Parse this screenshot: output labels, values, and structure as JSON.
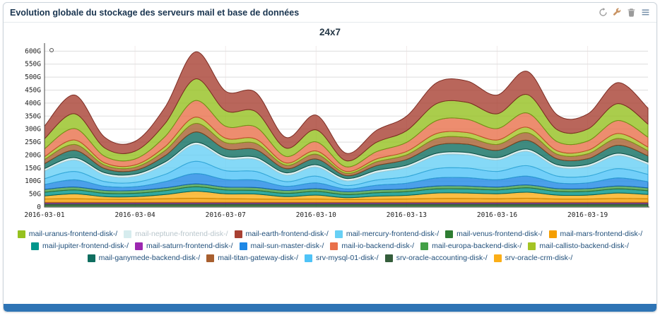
{
  "panel": {
    "title": "Evolution globale du stockage des serveurs mail et base de données",
    "toolbar_icons": [
      "refresh-icon",
      "wrench-icon",
      "trash-icon",
      "menu-icon"
    ],
    "footer_color": "#2e74b5"
  },
  "chart_data": {
    "type": "area",
    "stacked": true,
    "title": "24x7",
    "unit": "G",
    "grid": true,
    "legend_position": "bottom",
    "ylim": [
      0,
      620
    ],
    "x": [
      "2016-03-01",
      "2016-03-02",
      "2016-03-03",
      "2016-03-04",
      "2016-03-05",
      "2016-03-06",
      "2016-03-07",
      "2016-03-08",
      "2016-03-09",
      "2016-03-10",
      "2016-03-11",
      "2016-03-12",
      "2016-03-13",
      "2016-03-14",
      "2016-03-15",
      "2016-03-16",
      "2016-03-17",
      "2016-03-18",
      "2016-03-19",
      "2016-03-20",
      "2016-03-21"
    ],
    "x_ticks": [
      {
        "index": 0,
        "label": "2016-03-01"
      },
      {
        "index": 3,
        "label": "2016-03-04"
      },
      {
        "index": 6,
        "label": "2016-03-07"
      },
      {
        "index": 9,
        "label": "2016-03-10"
      },
      {
        "index": 12,
        "label": "2016-03-13"
      },
      {
        "index": 15,
        "label": "2016-03-16"
      },
      {
        "index": 18,
        "label": "2016-03-19"
      }
    ],
    "y_ticks": [
      {
        "value": 0,
        "label": "0"
      },
      {
        "value": 50,
        "label": "50G"
      },
      {
        "value": 100,
        "label": "100G"
      },
      {
        "value": 150,
        "label": "150G"
      },
      {
        "value": 200,
        "label": "200G"
      },
      {
        "value": 250,
        "label": "250G"
      },
      {
        "value": 300,
        "label": "300G"
      },
      {
        "value": 350,
        "label": "350G"
      },
      {
        "value": 400,
        "label": "400G"
      },
      {
        "value": 450,
        "label": "450G"
      },
      {
        "value": 500,
        "label": "500G"
      },
      {
        "value": 550,
        "label": "550G"
      },
      {
        "value": 600,
        "label": "600G"
      }
    ],
    "series": [
      {
        "name": "mail-venus-frontend-disk-/",
        "fill": "#2e7d32",
        "stroke": "#1b4d1e",
        "values": [
          8,
          8,
          8,
          8,
          8,
          8,
          8,
          8,
          8,
          8,
          8,
          8,
          8,
          8,
          8,
          8,
          8,
          8,
          8,
          8,
          8
        ]
      },
      {
        "name": "srv-oracle-accounting-disk-/",
        "fill": "#355e3b",
        "stroke": "#1e3a24",
        "values": [
          6,
          6,
          6,
          6,
          6,
          6,
          6,
          6,
          6,
          6,
          6,
          6,
          6,
          6,
          6,
          6,
          6,
          6,
          6,
          6,
          6
        ]
      },
      {
        "name": "mail-saturn-frontend-disk-/",
        "fill": "#9c27b0",
        "stroke": "#6a1b7a",
        "values": [
          4,
          4,
          4,
          4,
          4,
          4,
          4,
          4,
          4,
          4,
          4,
          4,
          4,
          4,
          4,
          4,
          4,
          4,
          4,
          4,
          4
        ]
      },
      {
        "name": "mail-mars-frontend-disk-/",
        "fill": "#f59e00",
        "stroke": "#b97400",
        "values": [
          13,
          14,
          12,
          12,
          14,
          16,
          14,
          13,
          12,
          13,
          11,
          12,
          13,
          15,
          15,
          14,
          16,
          13,
          13,
          15,
          14
        ]
      },
      {
        "name": "srv-oracle-crm-disk-/",
        "fill": "#fbae17",
        "stroke": "#c98200",
        "values": [
          12,
          19,
          10,
          10,
          16,
          27,
          19,
          19,
          10,
          15,
          7,
          12,
          14,
          21,
          21,
          19,
          23,
          15,
          15,
          21,
          16
        ]
      },
      {
        "name": "mail-jupiter-frontend-disk-/",
        "fill": "#00968b",
        "stroke": "#00635c",
        "values": [
          14,
          15,
          13,
          13,
          15,
          17,
          15,
          14,
          13,
          14,
          12,
          13,
          14,
          16,
          16,
          15,
          17,
          14,
          14,
          16,
          15
        ]
      },
      {
        "name": "mail-europa-backend-disk-/",
        "fill": "#43a047",
        "stroke": "#2d6e31",
        "values": [
          11,
          11,
          11,
          11,
          11,
          11,
          11,
          11,
          11,
          11,
          11,
          11,
          11,
          11,
          11,
          11,
          11,
          11,
          11,
          11,
          11
        ]
      },
      {
        "name": "mail-sun-master-disk-/",
        "fill": "#1e88e5",
        "stroke": "#1261a8",
        "values": [
          19,
          28,
          16,
          14,
          24,
          40,
          29,
          29,
          16,
          22,
          11,
          18,
          22,
          31,
          32,
          28,
          34,
          22,
          22,
          31,
          24
        ]
      },
      {
        "name": "srv-mysql-01-disk-/",
        "fill": "#4fc3f7",
        "stroke": "#2c9cd4",
        "values": [
          22,
          32,
          18,
          17,
          28,
          47,
          34,
          33,
          18,
          26,
          13,
          20,
          25,
          36,
          37,
          32,
          40,
          26,
          26,
          36,
          28
        ]
      },
      {
        "name": "mail-mercury-frontend-disk-/",
        "fill": "#67d0f5",
        "stroke": "#35a8d8",
        "values": [
          30,
          44,
          25,
          23,
          39,
          64,
          46,
          46,
          25,
          35,
          18,
          28,
          35,
          50,
          51,
          44,
          55,
          35,
          36,
          50,
          38
        ]
      },
      {
        "name": "mail-neptune-frontend-disk-/",
        "fill": "#d6ecee",
        "stroke": "#a8cdd2",
        "values": [
          9,
          9,
          9,
          9,
          9,
          9,
          9,
          9,
          9,
          9,
          9,
          9,
          9,
          9,
          9,
          9,
          9,
          9,
          9,
          9,
          9
        ]
      },
      {
        "name": "mail-ganymede-backend-disk-/",
        "fill": "#0f6e60",
        "stroke": "#094c42",
        "values": [
          19,
          28,
          16,
          14,
          24,
          40,
          29,
          29,
          16,
          22,
          11,
          18,
          22,
          31,
          32,
          28,
          34,
          22,
          22,
          31,
          24
        ]
      },
      {
        "name": "mail-titan-gateway-disk-/",
        "fill": "#a85f2f",
        "stroke": "#7a4220",
        "values": [
          16,
          23,
          13,
          12,
          20,
          33,
          24,
          24,
          13,
          18,
          9,
          15,
          18,
          26,
          26,
          23,
          29,
          18,
          19,
          26,
          20
        ]
      },
      {
        "name": "mail-callisto-backend-disk-/",
        "fill": "#a4c424",
        "stroke": "#7c9417",
        "values": [
          11,
          17,
          9,
          9,
          15,
          24,
          17,
          17,
          9,
          13,
          7,
          11,
          13,
          19,
          19,
          17,
          21,
          13,
          13,
          19,
          14
        ]
      },
      {
        "name": "mail-io-backend-disk-/",
        "fill": "#e9714b",
        "stroke": "#bc4c28",
        "values": [
          30,
          44,
          25,
          23,
          39,
          64,
          46,
          46,
          25,
          35,
          18,
          28,
          35,
          50,
          51,
          44,
          55,
          35,
          36,
          50,
          38
        ]
      },
      {
        "name": "mail-uranus-frontend-disk-/",
        "fill": "#95c11f",
        "stroke": "#6f9316",
        "values": [
          39,
          57,
          32,
          30,
          50,
          83,
          60,
          59,
          32,
          46,
          23,
          36,
          45,
          65,
          65,
          57,
          71,
          46,
          46,
          65,
          50
        ]
      },
      {
        "name": "mail-earth-frontend-disk-/",
        "fill": "#a84032",
        "stroke": "#7c2d23",
        "values": [
          49,
          72,
          41,
          38,
          63,
          104,
          75,
          74,
          41,
          57,
          29,
          46,
          56,
          81,
          82,
          72,
          89,
          57,
          58,
          81,
          62
        ]
      }
    ],
    "legend": [
      {
        "label": "mail-uranus-frontend-disk-/",
        "color": "#95c11f",
        "muted": false
      },
      {
        "label": "mail-neptune-frontend-disk-/",
        "color": "#d6ecee",
        "muted": true
      },
      {
        "label": "mail-earth-frontend-disk-/",
        "color": "#a84032",
        "muted": false
      },
      {
        "label": "mail-mercury-frontend-disk-/",
        "color": "#67d0f5",
        "muted": false
      },
      {
        "label": "mail-venus-frontend-disk-/",
        "color": "#2e7d32",
        "muted": false
      },
      {
        "label": "mail-mars-frontend-disk-/",
        "color": "#f59e00",
        "muted": false
      },
      {
        "label": "mail-jupiter-frontend-disk-/",
        "color": "#00968b",
        "muted": false
      },
      {
        "label": "mail-saturn-frontend-disk-/",
        "color": "#9c27b0",
        "muted": false
      },
      {
        "label": "mail-sun-master-disk-/",
        "color": "#1e88e5",
        "muted": false
      },
      {
        "label": "mail-io-backend-disk-/",
        "color": "#e9714b",
        "muted": false
      },
      {
        "label": "mail-europa-backend-disk-/",
        "color": "#43a047",
        "muted": false
      },
      {
        "label": "mail-callisto-backend-disk-/",
        "color": "#a4c424",
        "muted": false
      },
      {
        "label": "mail-ganymede-backend-disk-/",
        "color": "#0f6e60",
        "muted": false
      },
      {
        "label": "mail-titan-gateway-disk-/",
        "color": "#a85f2f",
        "muted": false
      },
      {
        "label": "srv-mysql-01-disk-/",
        "color": "#4fc3f7",
        "muted": false
      },
      {
        "label": "srv-oracle-accounting-disk-/",
        "color": "#355e3b",
        "muted": false
      },
      {
        "label": "srv-oracle-crm-disk-/",
        "color": "#fbae17",
        "muted": false
      }
    ]
  }
}
